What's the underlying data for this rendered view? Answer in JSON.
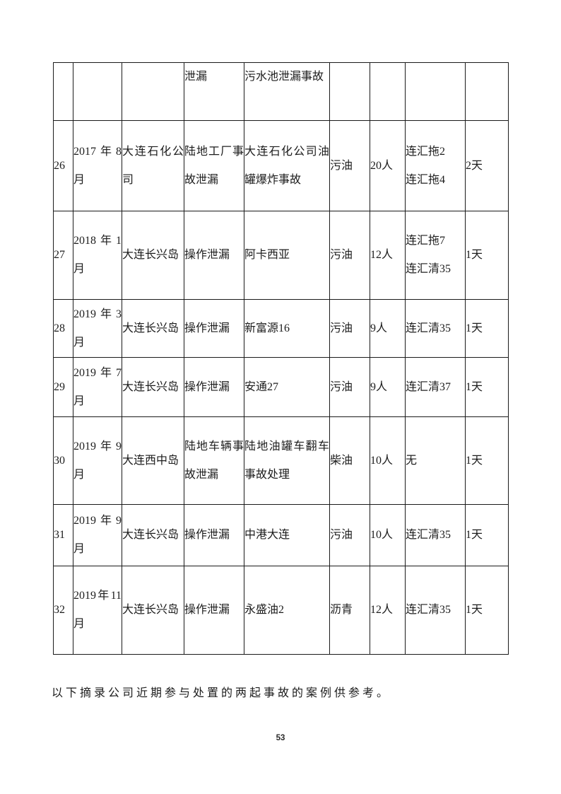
{
  "table": {
    "rows": [
      {
        "cells": [
          "",
          "",
          "",
          "泄漏",
          "污水池泄漏事故",
          "",
          "",
          "",
          ""
        ]
      },
      {
        "cells": [
          "26",
          "2017年8月",
          "大连石化公司",
          "陆地工厂事故泄漏",
          "大连石化公司油罐爆炸事故",
          "污油",
          "20人",
          [
            "连汇拖2",
            "连汇拖4"
          ],
          "2天"
        ]
      },
      {
        "cells": [
          "27",
          "2018年1月",
          "大连长兴岛",
          "操作泄漏",
          "阿卡西亚",
          "污油",
          "12人",
          [
            "连汇拖7",
            "连汇清35"
          ],
          "1天"
        ]
      },
      {
        "cells": [
          "28",
          "2019年3月",
          "大连长兴岛",
          "操作泄漏",
          "新富源16",
          "污油",
          "9人",
          [
            "连汇清35"
          ],
          "1天"
        ]
      },
      {
        "cells": [
          "29",
          "2019年7月",
          "大连长兴岛",
          "操作泄漏",
          "安通27",
          "污油",
          "9人",
          [
            "连汇清37"
          ],
          "1天"
        ]
      },
      {
        "cells": [
          "30",
          "2019年9月",
          "大连西中岛",
          "陆地车辆事故泄漏",
          "陆地油罐车翻车事故处理",
          "柴油",
          "10人",
          [
            "无"
          ],
          "1天"
        ]
      },
      {
        "cells": [
          "31",
          "2019年9月",
          "大连长兴岛",
          "操作泄漏",
          "中港大连",
          "污油",
          "10人",
          [
            "连汇清35"
          ],
          "1天"
        ]
      },
      {
        "cells": [
          "32",
          "2019年11月",
          "大连长兴岛",
          "操作泄漏",
          "永盛油2",
          "沥青",
          "12人",
          [
            "连汇清35"
          ],
          "1天"
        ]
      }
    ]
  },
  "footer": {
    "note": "以下摘录公司近期参与处置的两起事故的案例供参考。"
  },
  "page_number": "53",
  "colors": {
    "table_border": "#1a1a1a",
    "text": "#1c1c1c",
    "background": "#ffffff"
  }
}
